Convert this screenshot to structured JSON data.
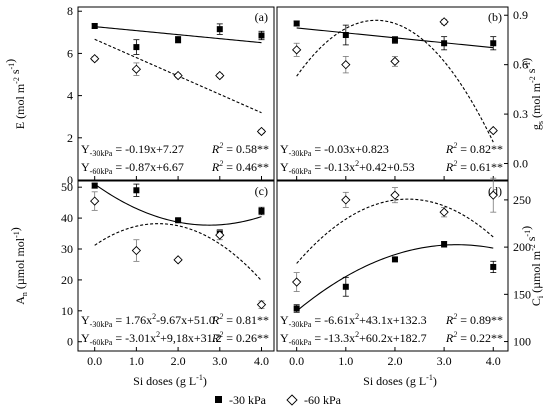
{
  "figure": {
    "xlabel_shared": "Si doses (g L-1)",
    "legend": [
      {
        "label": "-30 kPa",
        "marker": "filled-square"
      },
      {
        "label": "-60 kPa",
        "marker": "open-diamond"
      }
    ]
  },
  "chart_data": [
    {
      "panel": "(a)",
      "type": "scatter",
      "ylabel": "E (mol m-2 s-1)",
      "ylim": [
        0,
        8.2
      ],
      "yticks": [
        0,
        2,
        4,
        6,
        8
      ],
      "xlim": [
        -0.4,
        4.3
      ],
      "xticks": [
        "0.0",
        "1.0",
        "2.0",
        "3.0",
        "4.0"
      ],
      "x": [
        0,
        1,
        2,
        3,
        4
      ],
      "series": [
        {
          "name": "-30 kPa",
          "values": [
            7.3,
            6.3,
            6.65,
            7.15,
            6.85
          ],
          "errors": [
            0.1,
            0.35,
            0.15,
            0.25,
            0.2
          ]
        },
        {
          "name": "-60 kPa",
          "values": [
            5.75,
            5.25,
            4.95,
            4.95,
            2.3
          ],
          "errors": [
            0.1,
            0.3,
            0.1,
            0.1,
            0.1
          ]
        }
      ],
      "fits": [
        {
          "series": "-30 kPa",
          "coef": [
            7.27,
            -0.19
          ],
          "style": "solid"
        },
        {
          "series": "-60 kPa",
          "coef": [
            6.67,
            -0.87
          ],
          "style": "dashed"
        }
      ],
      "equations": [
        {
          "sub": "-30kPa",
          "eq": " = -0.19x+7.27",
          "r2": " = 0.58**"
        },
        {
          "sub": "-60kPa",
          "eq": " = -0.87x+6.67",
          "r2": " = 0.46**"
        }
      ]
    },
    {
      "panel": "(b)",
      "type": "scatter",
      "ylabel": "gs (mol m-2 s-1)",
      "ylim": [
        -0.1,
        0.95
      ],
      "yticks": [
        "0.0",
        "0.3",
        "0.6",
        "0.9"
      ],
      "ytick_values": [
        0,
        0.3,
        0.6,
        0.9
      ],
      "xlim": [
        -0.4,
        4.3
      ],
      "xticks": [
        "0.0",
        "1.0",
        "2.0",
        "3.0",
        "4.0"
      ],
      "x": [
        0,
        1,
        2,
        3,
        4
      ],
      "series": [
        {
          "name": "-30 kPa",
          "values": [
            0.85,
            0.78,
            0.75,
            0.73,
            0.73
          ],
          "errors": [
            0.015,
            0.06,
            0.02,
            0.04,
            0.04
          ]
        },
        {
          "name": "-60 kPa",
          "values": [
            0.69,
            0.6,
            0.62,
            0.86,
            0.2
          ],
          "errors": [
            0.04,
            0.05,
            0.03,
            0.015,
            0.01
          ]
        }
      ],
      "fits": [
        {
          "series": "-30 kPa",
          "coef": [
            0.823,
            -0.03
          ],
          "style": "solid"
        },
        {
          "series": "-60 kPa",
          "coef": [
            0.53,
            0.42,
            -0.13
          ],
          "style": "dashed"
        }
      ],
      "equations": [
        {
          "sub": "-30kPa",
          "eq": " = -0.03x+0.823",
          "r2": " = 0.82**"
        },
        {
          "sub": "-60kPa",
          "eq": " = -0.13x2+0.42+0.53",
          "r2": " = 0.61**"
        }
      ]
    },
    {
      "panel": "(c)",
      "type": "scatter",
      "ylabel": "An (µmol mol-1)",
      "ylim": [
        -3,
        52
      ],
      "yticks": [
        0,
        10,
        20,
        30,
        40,
        50
      ],
      "xlim": [
        -0.4,
        4.3
      ],
      "xticks": [
        "0.0",
        "1.0",
        "2.0",
        "3.0",
        "4.0"
      ],
      "x": [
        0,
        1,
        2,
        3,
        4
      ],
      "series": [
        {
          "name": "-30 kPa",
          "values": [
            50.5,
            49.0,
            39.3,
            35.2,
            42.3
          ],
          "errors": [
            0.8,
            2.0,
            0.5,
            1.0,
            1.2
          ]
        },
        {
          "name": "-60 kPa",
          "values": [
            45.5,
            29.5,
            26.5,
            34.5,
            12.0
          ],
          "errors": [
            3.0,
            3.5,
            0.5,
            1.5,
            1.2
          ]
        }
      ],
      "fits": [
        {
          "series": "-30 kPa",
          "coef": [
            51.0,
            -9.67,
            1.76
          ],
          "style": "solid"
        },
        {
          "series": "-60 kPa",
          "coef": [
            31.2,
            9.18,
            -3.01
          ],
          "style": "dashed"
        }
      ],
      "equations": [
        {
          "sub": "-30kPa",
          "eq": " = 1.76x2-9.67x+51.0",
          "r2": " = 0.81**"
        },
        {
          "sub": "-60kPa",
          "eq": " = -3.01x2+9,18x+31.2",
          "r2": " = 0.26**"
        }
      ]
    },
    {
      "panel": "(d)",
      "type": "scatter",
      "ylabel": "Ci (µmol m-2 s-1)",
      "ylim": [
        90,
        270
      ],
      "yticks": [
        100,
        150,
        200,
        250
      ],
      "xlim": [
        -0.4,
        4.3
      ],
      "xticks": [
        "0.0",
        "1.0",
        "2.0",
        "3.0",
        "4.0"
      ],
      "x": [
        0,
        1,
        2,
        3,
        4
      ],
      "series": [
        {
          "name": "-30 kPa",
          "values": [
            135,
            158,
            187,
            203,
            179
          ],
          "errors": [
            4,
            10,
            2,
            3,
            6
          ]
        },
        {
          "name": "-60 kPa",
          "values": [
            163,
            250,
            255,
            237,
            255
          ],
          "errors": [
            10,
            8,
            8,
            5,
            18
          ]
        }
      ],
      "fits": [
        {
          "series": "-30 kPa",
          "coef": [
            132.3,
            43.1,
            -6.61
          ],
          "style": "solid"
        },
        {
          "series": "-60 kPa",
          "coef": [
            182.7,
            60.2,
            -13.3
          ],
          "style": "dashed"
        }
      ],
      "equations": [
        {
          "sub": "-30kPa",
          "eq": " = -6.61x2+43.1x+132.3",
          "r2": " = 0.89**"
        },
        {
          "sub": "-60kPa",
          "eq": " = -13.3x2+60.2x+182.7",
          "r2": " = 0.22**"
        }
      ]
    }
  ]
}
